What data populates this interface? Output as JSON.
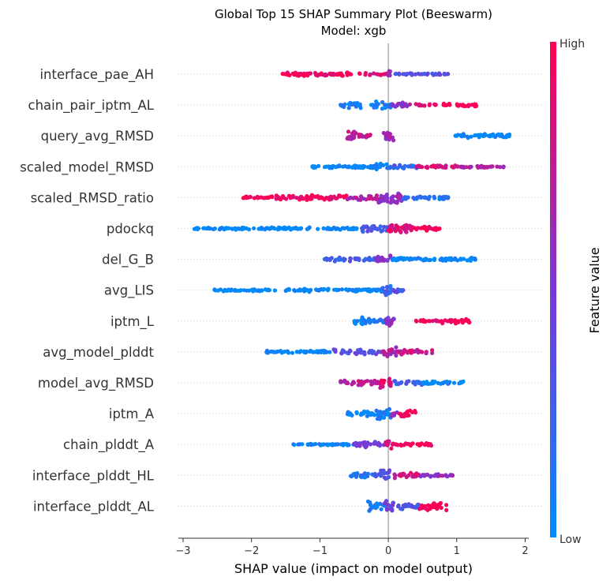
{
  "chart_data": {
    "type": "scatter",
    "subtype": "beeswarm",
    "title": "Global Top 15 SHAP Summary Plot (Beeswarm)",
    "subtitle": "Model: xgb",
    "xlabel": "SHAP value (impact on model output)",
    "xlim": [
      -3.05,
      2.05
    ],
    "xticks": [
      -3,
      -2,
      -1,
      0,
      1,
      2
    ],
    "colorbar": {
      "label": "Feature value",
      "high_label": "High",
      "low_label": "Low",
      "high_color": "#ff0052",
      "mid_color": "#7b37d6",
      "low_color": "#008bfb"
    },
    "features": [
      {
        "name": "interface_pae_AH",
        "segments": [
          {
            "from": -1.6,
            "to": -0.3,
            "value": 0.95,
            "width": 0.22
          },
          {
            "from": -0.3,
            "to": 0.0,
            "value": 0.85,
            "width": 0.12
          },
          {
            "from": 0.0,
            "to": 0.04,
            "value": 0.7,
            "width": 0.5
          },
          {
            "from": 0.1,
            "to": 0.9,
            "value": 0.35,
            "width": 0.12
          }
        ]
      },
      {
        "name": "chain_pair_iptm_AL",
        "segments": [
          {
            "from": -0.75,
            "to": -0.4,
            "value": 0.05,
            "width": 0.35
          },
          {
            "from": -0.25,
            "to": 0.05,
            "value": 0.1,
            "width": 0.45
          },
          {
            "from": 0.05,
            "to": 0.35,
            "value": 0.6,
            "width": 0.3
          },
          {
            "from": 0.4,
            "to": 0.7,
            "value": 0.9,
            "width": 0.12
          },
          {
            "from": 0.8,
            "to": 1.3,
            "value": 1.0,
            "width": 0.2
          }
        ]
      },
      {
        "name": "query_avg_RMSD",
        "segments": [
          {
            "from": -0.6,
            "to": -0.45,
            "value": 0.7,
            "width": 0.6
          },
          {
            "from": -0.45,
            "to": -0.25,
            "value": 0.75,
            "width": 0.2
          },
          {
            "from": -0.08,
            "to": 0.08,
            "value": 0.65,
            "width": 0.55
          },
          {
            "from": 0.95,
            "to": 1.8,
            "value": 0.0,
            "width": 0.22
          }
        ]
      },
      {
        "name": "scaled_model_RMSD",
        "segments": [
          {
            "from": -1.2,
            "to": -0.2,
            "value": 0.0,
            "width": 0.18
          },
          {
            "from": -0.2,
            "to": 0.0,
            "value": 0.05,
            "width": 0.45
          },
          {
            "from": 0.0,
            "to": 0.5,
            "value": 0.25,
            "width": 0.2
          },
          {
            "from": 0.4,
            "to": 1.0,
            "value": 0.85,
            "width": 0.2
          },
          {
            "from": 1.0,
            "to": 1.7,
            "value": 0.7,
            "width": 0.1
          }
        ]
      },
      {
        "name": "scaled_RMSD_ratio",
        "segments": [
          {
            "from": -2.15,
            "to": -1.7,
            "value": 1.0,
            "width": 0.15
          },
          {
            "from": -1.7,
            "to": -0.6,
            "value": 0.95,
            "width": 0.28
          },
          {
            "from": -0.6,
            "to": -0.15,
            "value": 0.7,
            "width": 0.3
          },
          {
            "from": -0.15,
            "to": 0.2,
            "value": 0.6,
            "width": 0.7
          },
          {
            "from": 0.2,
            "to": 0.9,
            "value": 0.15,
            "width": 0.2
          }
        ]
      },
      {
        "name": "pdockq",
        "segments": [
          {
            "from": -2.85,
            "to": -0.4,
            "value": 0.0,
            "width": 0.14
          },
          {
            "from": -0.4,
            "to": 0.0,
            "value": 0.3,
            "width": 0.4
          },
          {
            "from": 0.0,
            "to": 0.35,
            "value": 0.85,
            "width": 0.6
          },
          {
            "from": 0.35,
            "to": 0.75,
            "value": 0.95,
            "width": 0.25
          }
        ]
      },
      {
        "name": "del_G_B",
        "segments": [
          {
            "from": -0.95,
            "to": -0.2,
            "value": 0.25,
            "width": 0.25
          },
          {
            "from": -0.2,
            "to": 0.05,
            "value": 0.5,
            "width": 0.45
          },
          {
            "from": 0.05,
            "to": 1.3,
            "value": 0.0,
            "width": 0.18
          }
        ]
      },
      {
        "name": "avg_LIS",
        "segments": [
          {
            "from": -2.55,
            "to": -1.6,
            "value": 0.0,
            "width": 0.12
          },
          {
            "from": -1.5,
            "to": -0.1,
            "value": 0.0,
            "width": 0.2
          },
          {
            "from": -0.1,
            "to": 0.05,
            "value": 0.2,
            "width": 0.7
          },
          {
            "from": 0.05,
            "to": 0.25,
            "value": 0.35,
            "width": 0.25
          }
        ]
      },
      {
        "name": "iptm_L",
        "segments": [
          {
            "from": -0.5,
            "to": -0.35,
            "value": 0.0,
            "width": 0.6
          },
          {
            "from": -0.35,
            "to": -0.05,
            "value": 0.1,
            "width": 0.3
          },
          {
            "from": -0.05,
            "to": 0.1,
            "value": 0.55,
            "width": 0.6
          },
          {
            "from": 0.4,
            "to": 0.75,
            "value": 0.95,
            "width": 0.15
          },
          {
            "from": 0.75,
            "to": 1.2,
            "value": 1.0,
            "width": 0.3
          }
        ]
      },
      {
        "name": "avg_model_plddt",
        "segments": [
          {
            "from": -1.8,
            "to": -0.8,
            "value": 0.0,
            "width": 0.16
          },
          {
            "from": -0.8,
            "to": -0.1,
            "value": 0.35,
            "width": 0.3
          },
          {
            "from": -0.1,
            "to": 0.15,
            "value": 0.7,
            "width": 0.6
          },
          {
            "from": 0.15,
            "to": 0.65,
            "value": 0.8,
            "width": 0.3
          }
        ]
      },
      {
        "name": "model_avg_RMSD",
        "segments": [
          {
            "from": -0.7,
            "to": -0.15,
            "value": 0.75,
            "width": 0.3
          },
          {
            "from": -0.15,
            "to": 0.05,
            "value": 0.85,
            "width": 0.6
          },
          {
            "from": 0.05,
            "to": 0.5,
            "value": 0.25,
            "width": 0.25
          },
          {
            "from": 0.5,
            "to": 1.1,
            "value": 0.0,
            "width": 0.15
          }
        ]
      },
      {
        "name": "iptm_A",
        "segments": [
          {
            "from": -0.6,
            "to": -0.2,
            "value": 0.05,
            "width": 0.3
          },
          {
            "from": -0.2,
            "to": 0.05,
            "value": 0.05,
            "width": 0.7
          },
          {
            "from": 0.05,
            "to": 0.15,
            "value": 0.6,
            "width": 0.3
          },
          {
            "from": 0.15,
            "to": 0.4,
            "value": 1.0,
            "width": 0.45
          }
        ]
      },
      {
        "name": "chain_plddt_A",
        "segments": [
          {
            "from": -1.4,
            "to": -0.5,
            "value": 0.05,
            "width": 0.1
          },
          {
            "from": -0.5,
            "to": 0.0,
            "value": 0.5,
            "width": 0.3
          },
          {
            "from": -0.05,
            "to": 0.08,
            "value": 0.85,
            "width": 0.7
          },
          {
            "from": 0.1,
            "to": 0.65,
            "value": 1.0,
            "width": 0.15
          }
        ]
      },
      {
        "name": "interface_plddt_HL",
        "segments": [
          {
            "from": -0.55,
            "to": -0.2,
            "value": 0.15,
            "width": 0.35
          },
          {
            "from": -0.2,
            "to": 0.05,
            "value": 0.35,
            "width": 0.55
          },
          {
            "from": 0.05,
            "to": 0.45,
            "value": 0.8,
            "width": 0.35
          },
          {
            "from": 0.45,
            "to": 0.95,
            "value": 0.6,
            "width": 0.15
          }
        ]
      },
      {
        "name": "interface_plddt_AL",
        "segments": [
          {
            "from": -0.3,
            "to": -0.05,
            "value": 0.1,
            "width": 0.55
          },
          {
            "from": -0.05,
            "to": 0.1,
            "value": 0.45,
            "width": 0.65
          },
          {
            "from": 0.1,
            "to": 0.45,
            "value": 0.3,
            "width": 0.35
          },
          {
            "from": 0.45,
            "to": 0.85,
            "value": 0.95,
            "width": 0.45
          }
        ]
      }
    ]
  }
}
